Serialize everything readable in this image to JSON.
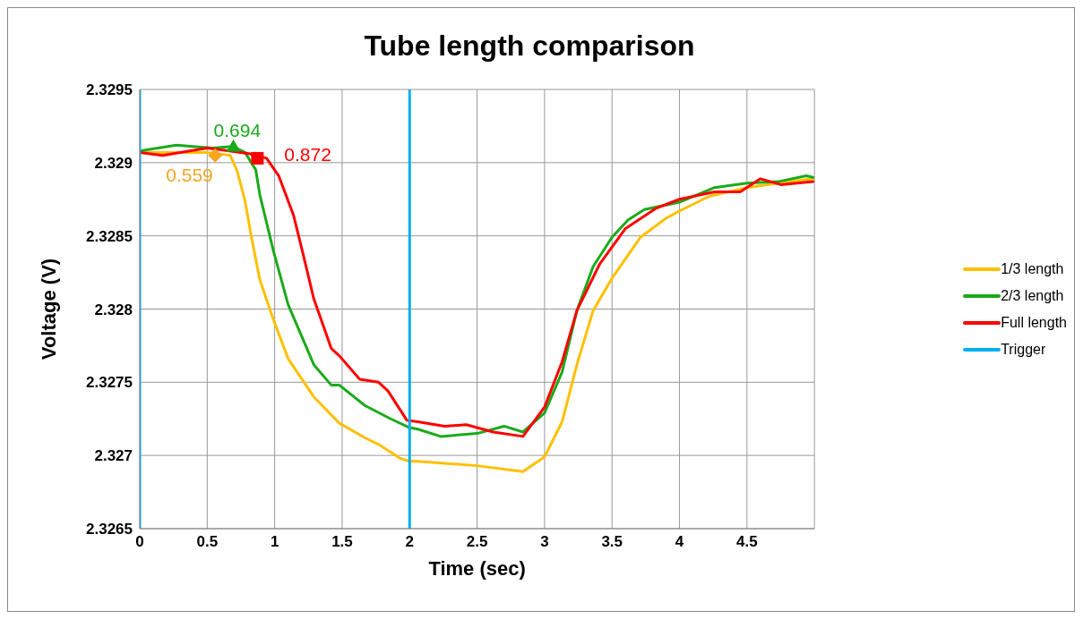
{
  "chart_data": {
    "type": "line",
    "title": "Tube length comparison",
    "xlabel": "Time (sec)",
    "ylabel": "Voltage (V)",
    "xlim": [
      0,
      5
    ],
    "xticks": [
      0,
      0.5,
      1,
      1.5,
      2,
      2.5,
      3,
      3.5,
      4,
      4.5,
      {
        "value": 5,
        "label": null
      }
    ],
    "ylim": [
      2.3265,
      2.3295
    ],
    "yticks": [
      2.3265,
      2.327,
      2.3275,
      2.328,
      2.3285,
      2.329,
      2.3295
    ],
    "grid": true,
    "legend": "right",
    "marker": "none",
    "line_style": "solid",
    "series": [
      {
        "name": "1/3 length",
        "color": "#ffc000",
        "x": [
          0,
          0.5,
          0.67,
          0.72,
          0.78,
          0.83,
          0.89,
          0.99,
          1.1,
          1.29,
          1.48,
          1.67,
          1.78,
          1.93,
          2.0,
          2.06,
          2.5,
          2.84,
          3.0,
          3.13,
          3.24,
          3.36,
          3.5,
          3.71,
          3.9,
          4.0,
          4.22,
          4.5,
          4.73,
          4.99
        ],
        "values": [
          2.32907,
          2.32907,
          2.32905,
          2.32895,
          2.32874,
          2.32848,
          2.3282,
          2.32793,
          2.32766,
          2.3274,
          2.32722,
          2.32712,
          2.32707,
          2.32698,
          2.32696,
          2.32696,
          2.32693,
          2.32689,
          2.32699,
          2.32723,
          2.32762,
          2.32799,
          2.32821,
          2.32849,
          2.32862,
          2.32867,
          2.32877,
          2.32883,
          2.32886,
          2.32889
        ]
      },
      {
        "name": "2/3 length",
        "color": "#1aaa1a",
        "x": [
          0,
          0.27,
          0.54,
          0.69,
          0.78,
          0.86,
          0.89,
          0.99,
          1.1,
          1.29,
          1.42,
          1.48,
          1.67,
          1.86,
          2.0,
          2.06,
          2.23,
          2.5,
          2.7,
          2.84,
          3.0,
          3.13,
          3.24,
          3.36,
          3.5,
          3.62,
          3.74,
          4.0,
          4.26,
          4.5,
          4.73,
          4.94,
          4.99
        ],
        "values": [
          2.32908,
          2.32912,
          2.3291,
          2.32911,
          2.32907,
          2.32895,
          2.32878,
          2.3284,
          2.32803,
          2.32762,
          2.32748,
          2.32748,
          2.32734,
          2.32725,
          2.32719,
          2.32718,
          2.32713,
          2.32715,
          2.3272,
          2.32716,
          2.32729,
          2.32757,
          2.32799,
          2.32829,
          2.32849,
          2.32861,
          2.32868,
          2.32873,
          2.32883,
          2.32886,
          2.32887,
          2.32891,
          2.3289
        ]
      },
      {
        "name": "Full length",
        "color": "#ff0000",
        "x": [
          0,
          0.17,
          0.5,
          0.82,
          0.94,
          1.03,
          1.14,
          1.22,
          1.29,
          1.42,
          1.48,
          1.63,
          1.77,
          1.84,
          1.98,
          2.06,
          2.26,
          2.42,
          2.62,
          2.84,
          3.0,
          3.13,
          3.24,
          3.41,
          3.6,
          3.83,
          4.0,
          4.26,
          4.45,
          4.6,
          4.75,
          4.99
        ],
        "values": [
          2.32907,
          2.32905,
          2.3291,
          2.32906,
          2.32903,
          2.32891,
          2.32864,
          2.32834,
          2.32807,
          2.32773,
          2.32768,
          2.32752,
          2.3275,
          2.32744,
          2.32724,
          2.32723,
          2.3272,
          2.32721,
          2.32716,
          2.32713,
          2.32733,
          2.32764,
          2.32799,
          2.32831,
          2.32855,
          2.32869,
          2.32875,
          2.3288,
          2.3288,
          2.32889,
          2.32885,
          2.32887
        ]
      },
      {
        "name": "Trigger",
        "color": "#00b0f0",
        "x": [
          0,
          0,
          null,
          2,
          2
        ],
        "values": [
          2.3265,
          2.3295,
          null,
          2.3295,
          2.3265
        ]
      },
      {
        "type": "scatter",
        "marker": "diamond",
        "color": "#f5a623",
        "x": [
          0.559
        ],
        "values": [
          2.32905
        ]
      },
      {
        "type": "scatter",
        "marker": "triangle",
        "color": "#1aaa1a",
        "x": [
          0.694
        ],
        "values": [
          2.32911
        ]
      },
      {
        "type": "scatter",
        "marker": "square",
        "color": "#ff0000",
        "x": [
          0.872
        ],
        "values": [
          2.32903
        ]
      }
    ],
    "annotations": [
      {
        "text": "0.559",
        "x": 0.559,
        "y": 2.32905
      },
      {
        "text": "0.694",
        "x": 0.694,
        "y": 2.32911
      },
      {
        "text": "0.872",
        "x": 0.872,
        "y": 2.32903
      }
    ]
  }
}
